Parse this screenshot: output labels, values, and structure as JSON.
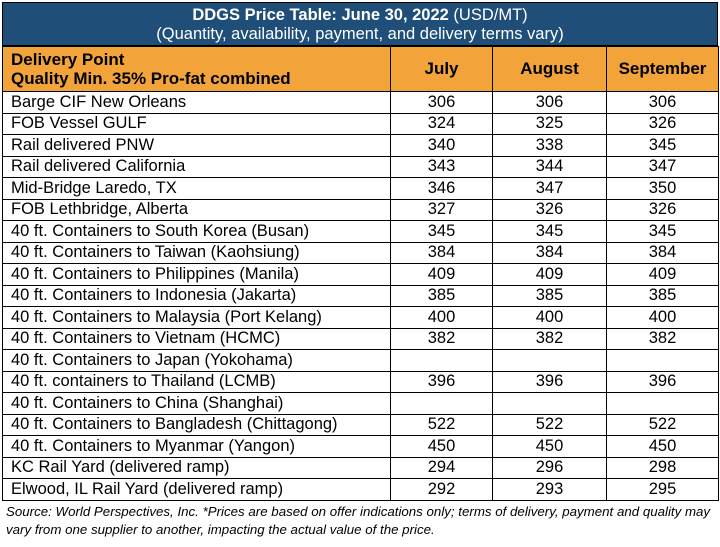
{
  "header": {
    "title_bold": "DDGS Price Table: June 30, 2022",
    "title_units": "(USD/MT)",
    "subtitle": "(Quantity, availability, payment, and delivery terms vary)"
  },
  "columns": {
    "delivery_point_line1": "Delivery Point",
    "delivery_point_line2": "Quality Min. 35% Pro-fat combined",
    "months": [
      "July",
      "August",
      "September"
    ]
  },
  "chart_data": {
    "type": "table",
    "title": "DDGS Price Table: June 30, 2022 (USD/MT)",
    "columns": [
      "July",
      "August",
      "September"
    ],
    "rows": [
      {
        "label": "Barge CIF New Orleans",
        "values": [
          "306",
          "306",
          "306"
        ]
      },
      {
        "label": "FOB Vessel GULF",
        "values": [
          "324",
          "325",
          "326"
        ]
      },
      {
        "label": "Rail delivered PNW",
        "values": [
          "340",
          "338",
          "345"
        ]
      },
      {
        "label": "Rail delivered California",
        "values": [
          "343",
          "344",
          "347"
        ]
      },
      {
        "label": "Mid-Bridge Laredo, TX",
        "values": [
          "346",
          "347",
          "350"
        ]
      },
      {
        "label": "FOB Lethbridge, Alberta",
        "values": [
          "327",
          "326",
          "326"
        ]
      },
      {
        "label": "40 ft. Containers to South Korea (Busan)",
        "values": [
          "345",
          "345",
          "345"
        ]
      },
      {
        "label": "40 ft. Containers to Taiwan (Kaohsiung)",
        "values": [
          "384",
          "384",
          "384"
        ]
      },
      {
        "label": "40 ft. Containers to Philippines (Manila)",
        "values": [
          "409",
          "409",
          "409"
        ]
      },
      {
        "label": "40 ft. Containers to Indonesia (Jakarta)",
        "values": [
          "385",
          "385",
          "385"
        ]
      },
      {
        "label": "40 ft. Containers to Malaysia (Port Kelang)",
        "values": [
          "400",
          "400",
          "400"
        ]
      },
      {
        "label": "40 ft. Containers to Vietnam (HCMC)",
        "values": [
          "382",
          "382",
          "382"
        ]
      },
      {
        "label": "40 ft. Containers to Japan (Yokohama)",
        "values": [
          "",
          "",
          ""
        ]
      },
      {
        "label": "40 ft. containers to Thailand (LCMB)",
        "values": [
          "396",
          "396",
          "396"
        ]
      },
      {
        "label": "40 ft. Containers to China (Shanghai)",
        "values": [
          "",
          "",
          ""
        ]
      },
      {
        "label": "40 ft. Containers to Bangladesh (Chittagong)",
        "values": [
          "522",
          "522",
          "522"
        ]
      },
      {
        "label": "40 ft. Containers to Myanmar (Yangon)",
        "values": [
          "450",
          "450",
          "450"
        ]
      },
      {
        "label": "KC Rail Yard (delivered ramp)",
        "values": [
          "294",
          "296",
          "298"
        ]
      },
      {
        "label": "Elwood, IL Rail Yard (delivered ramp)",
        "values": [
          "292",
          "293",
          "295"
        ]
      }
    ]
  },
  "footer": {
    "source_note": "Source: World Perspectives, Inc. *Prices are based on offer indications only; terms of delivery, payment and quality may vary from one supplier to another, impacting the actual value of the price."
  },
  "colors": {
    "title_bg": "#1f4e79",
    "header_bg": "#f2a33a"
  }
}
